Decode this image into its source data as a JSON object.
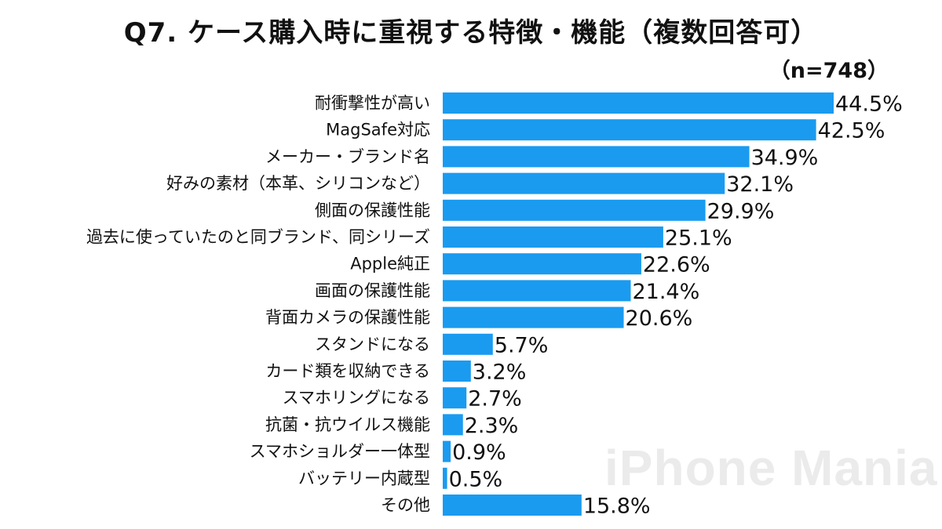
{
  "chart_data": {
    "type": "bar",
    "orientation": "horizontal",
    "title": "Q7. ケース購入時に重視する特徴・機能（複数回答可）",
    "sample_size": "（n=748）",
    "categories": [
      "耐衝撃性が高い",
      "MagSafe対応",
      "メーカー・ブランド名",
      "好みの素材（本革、シリコンなど）",
      "側面の保護性能",
      "過去に使っていたのと同ブランド、同シリーズ",
      "Apple純正",
      "画面の保護性能",
      "背面カメラの保護性能",
      "スタンドになる",
      "カード類を収納できる",
      "スマホリングになる",
      "抗菌・抗ウイルス機能",
      "スマホショルダー一体型",
      "バッテリー内蔵型",
      "その他"
    ],
    "values": [
      44.5,
      42.5,
      34.9,
      32.1,
      29.9,
      25.1,
      22.6,
      21.4,
      20.6,
      5.7,
      3.2,
      2.7,
      2.3,
      0.9,
      0.5,
      15.8
    ],
    "value_labels": [
      "44.5%",
      "42.5%",
      "34.9%",
      "32.1%",
      "29.9%",
      "25.1%",
      "22.6%",
      "21.4%",
      "20.6%",
      "5.7%",
      "3.2%",
      "2.7%",
      "2.3%",
      "0.9%",
      "0.5%",
      "15.8%"
    ],
    "unit": "%",
    "xlim": [
      0,
      44.5
    ],
    "grid": false,
    "bar_color": "#1a9bf0"
  },
  "watermark": "iPhone Mania"
}
